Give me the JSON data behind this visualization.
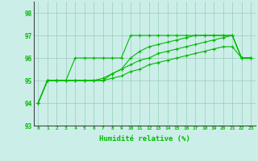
{
  "x_ticks": [
    0,
    1,
    2,
    3,
    4,
    5,
    6,
    7,
    8,
    9,
    10,
    11,
    12,
    13,
    14,
    15,
    16,
    17,
    18,
    19,
    20,
    21,
    22,
    23
  ],
  "line1": [
    94,
    95,
    95,
    95,
    96,
    96,
    96,
    96,
    96,
    96,
    97,
    97,
    97,
    97,
    97,
    97,
    97,
    97,
    97,
    97,
    97,
    97,
    96,
    96
  ],
  "line2": [
    94,
    95,
    95,
    95,
    95,
    95,
    95,
    95,
    95.3,
    95.5,
    96,
    96.3,
    96.5,
    96.6,
    96.7,
    96.8,
    96.9,
    97,
    97,
    97,
    97,
    97,
    96,
    96
  ],
  "line3": [
    94,
    95,
    95,
    95,
    95,
    95,
    95,
    95.1,
    95.3,
    95.5,
    95.7,
    95.9,
    96.0,
    96.2,
    96.3,
    96.4,
    96.5,
    96.6,
    96.7,
    96.8,
    96.9,
    97,
    96,
    96
  ],
  "line4": [
    94,
    95,
    95,
    95,
    95,
    95,
    95,
    95,
    95.1,
    95.2,
    95.4,
    95.5,
    95.7,
    95.8,
    95.9,
    96.0,
    96.1,
    96.2,
    96.3,
    96.4,
    96.5,
    96.5,
    96,
    96
  ],
  "ylim": [
    93,
    98.5
  ],
  "yticks": [
    93,
    94,
    95,
    96,
    97,
    98
  ],
  "xlabel": "Humidité relative (%)",
  "line_color": "#00bb00",
  "bg_color": "#cceee8",
  "grid_color": "#99ccbb"
}
